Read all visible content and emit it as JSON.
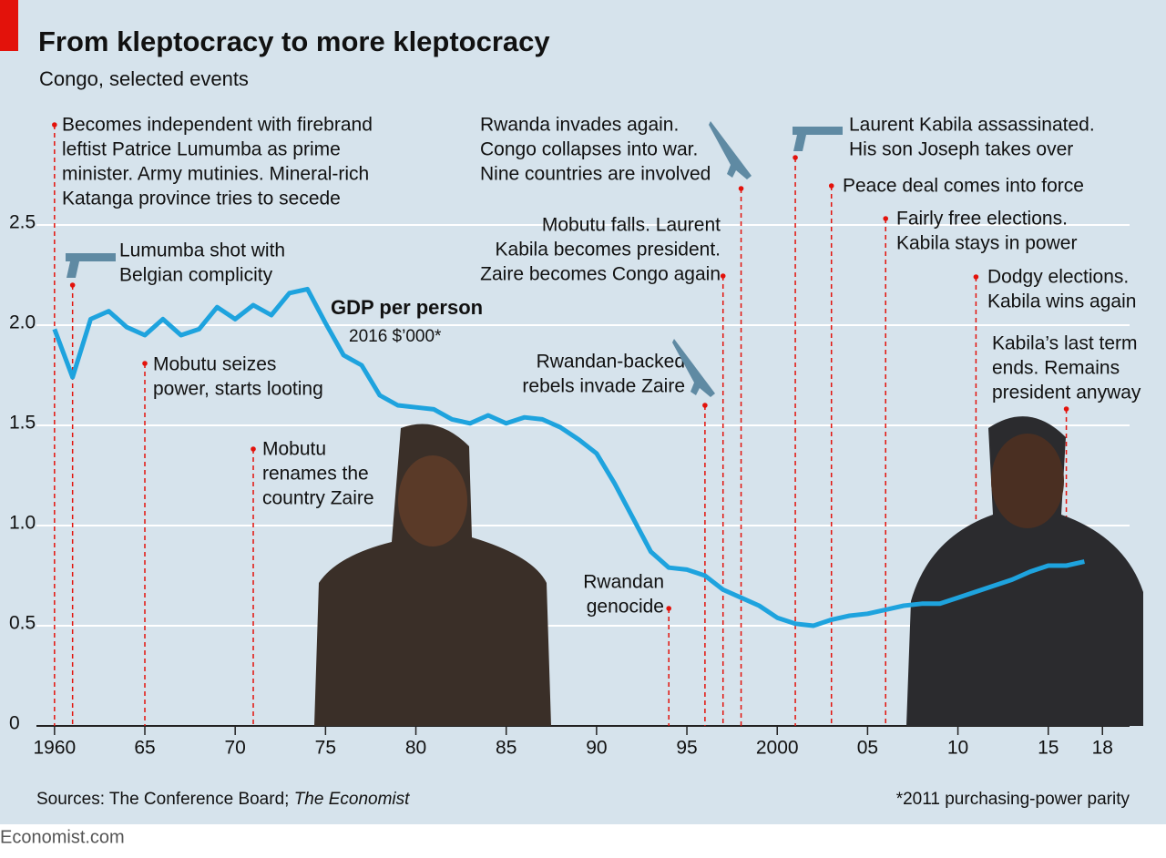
{
  "chart_data": {
    "type": "line",
    "title": "From kleptocracy to more kleptocracy",
    "subtitle": "Congo, selected events",
    "series_label": "GDP per person",
    "series_unit": "2016 $’000*",
    "x": [
      1960,
      1961,
      1962,
      1963,
      1964,
      1965,
      1966,
      1967,
      1968,
      1969,
      1970,
      1971,
      1972,
      1973,
      1974,
      1975,
      1976,
      1977,
      1978,
      1979,
      1980,
      1981,
      1982,
      1983,
      1984,
      1985,
      1986,
      1987,
      1988,
      1989,
      1990,
      1991,
      1992,
      1993,
      1994,
      1995,
      1996,
      1997,
      1998,
      1999,
      2000,
      2001,
      2002,
      2003,
      2004,
      2005,
      2006,
      2007,
      2008,
      2009,
      2010,
      2011,
      2012,
      2013,
      2014,
      2015,
      2016,
      2017
    ],
    "series": [
      {
        "name": "GDP per person",
        "color": "#1ea3de",
        "values": [
          1.98,
          1.74,
          2.03,
          2.07,
          1.99,
          1.95,
          2.03,
          1.95,
          1.98,
          2.09,
          2.03,
          2.1,
          2.05,
          2.16,
          2.18,
          2.01,
          1.85,
          1.8,
          1.65,
          1.6,
          1.59,
          1.58,
          1.53,
          1.51,
          1.55,
          1.51,
          1.54,
          1.53,
          1.49,
          1.43,
          1.36,
          1.21,
          1.04,
          0.87,
          0.79,
          0.78,
          0.75,
          0.68,
          0.64,
          0.6,
          0.54,
          0.51,
          0.5,
          0.53,
          0.55,
          0.56,
          0.58,
          0.6,
          0.61,
          0.61,
          0.64,
          0.67,
          0.7,
          0.73,
          0.77,
          0.8,
          0.8,
          0.82
        ]
      }
    ],
    "xlim": [
      1959,
      2019.5
    ],
    "ylim": [
      0,
      3
    ],
    "xticks": [
      1960,
      {
        "value": 1965,
        "label": "65"
      },
      {
        "value": 1970,
        "label": "70"
      },
      {
        "value": 1975,
        "label": "75"
      },
      {
        "value": 1980,
        "label": "80"
      },
      {
        "value": 1985,
        "label": "85"
      },
      {
        "value": 1990,
        "label": "90"
      },
      {
        "value": 1995,
        "label": "95"
      },
      2000,
      {
        "value": 2005,
        "label": "05"
      },
      {
        "value": 2010,
        "label": "10"
      },
      {
        "value": 2015,
        "label": "15"
      },
      {
        "value": 2018,
        "label": "18"
      }
    ],
    "yticks": [
      0,
      0.5,
      {
        "value": 1,
        "label": "1.0"
      },
      1.5,
      {
        "value": 2,
        "label": "2.0"
      },
      2.5
    ],
    "grid": true,
    "annotations": [
      {
        "x": 1960,
        "lines": [
          "Becomes independent with firebrand",
          "leftist Patrice Lumumba as prime",
          "minister. Army mutinies. Mineral-rich",
          "Katanga province tries to secede"
        ]
      },
      {
        "x": 1961,
        "lines": [
          "Lumumba shot with",
          "Belgian complicity"
        ]
      },
      {
        "x": 1965,
        "lines": [
          "Mobutu seizes",
          "power, starts looting"
        ]
      },
      {
        "x": 1971,
        "lines": [
          "Mobutu",
          "renames the",
          "country Zaire"
        ]
      },
      {
        "x": 1994,
        "lines": [
          "Rwandan",
          "genocide"
        ]
      },
      {
        "x": 1996,
        "lines": [
          "Rwandan-backed",
          "rebels invade Zaire"
        ]
      },
      {
        "x": 1997,
        "lines": [
          "Mobutu falls. Laurent",
          "Kabila becomes president.",
          "Zaire becomes Congo again"
        ]
      },
      {
        "x": 1998,
        "lines": [
          "Rwanda invades again.",
          "Congo collapses into war.",
          "Nine countries are involved"
        ]
      },
      {
        "x": 2001,
        "lines": [
          "Laurent Kabila assassinated.",
          "His son Joseph takes over"
        ]
      },
      {
        "x": 2003,
        "lines": [
          "Peace deal comes into force"
        ]
      },
      {
        "x": 2006,
        "lines": [
          "Fairly free elections.",
          "Kabila stays in power"
        ]
      },
      {
        "x": 2011,
        "lines": [
          "Dodgy elections.",
          "Kabila wins again"
        ]
      },
      {
        "x": 2016,
        "lines": [
          "Kabila’s last term",
          "ends. Remains",
          "president anyway"
        ]
      }
    ],
    "source": "Sources: The Conference Board;",
    "source_italic": "The Economist",
    "footnote": "*2011 purchasing-power parity",
    "brand": "Economist.com"
  }
}
